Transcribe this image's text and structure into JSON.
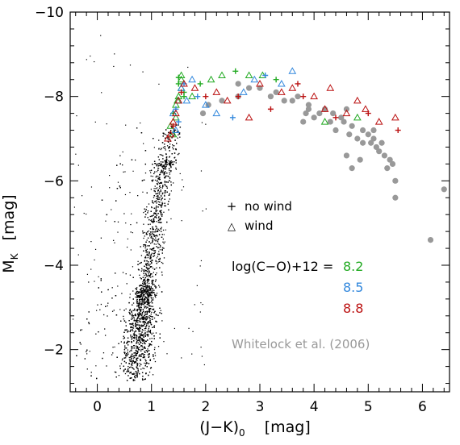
{
  "chart_data": {
    "type": "scatter",
    "xlabel_main": "(J−K)",
    "xlabel_sub": "0",
    "xlabel_unit": "[mag]",
    "ylabel_main": "M",
    "ylabel_sub": "K",
    "ylabel_unit": "[mag]",
    "xlim": [
      -0.5,
      6.5
    ],
    "ylim": [
      -1.0,
      -10.0
    ],
    "x_ticks": [
      0,
      1,
      2,
      3,
      4,
      5,
      6
    ],
    "y_ticks": [
      -2,
      -4,
      -6,
      -8,
      -10
    ],
    "x_tick_labels": [
      "0",
      "1",
      "2",
      "3",
      "4",
      "5",
      "6"
    ],
    "y_tick_labels": [
      "−2",
      "−4",
      "−6",
      "−8",
      "−10"
    ],
    "grid": false,
    "legend": {
      "symbols": [
        {
          "glyph": "+",
          "label": "no wind"
        },
        {
          "glyph": "△",
          "label": "wind"
        }
      ],
      "metallicity_label": "log(C−O)+12 =",
      "metallicity_values": [
        {
          "value": "8.2",
          "color": "#22aa22"
        },
        {
          "value": "8.5",
          "color": "#3388dd"
        },
        {
          "value": "8.8",
          "color": "#bb1111"
        }
      ],
      "reference_label": "Whitelock et al. (2006)",
      "reference_color": "#999999"
    },
    "background_population": {
      "name": "field stars",
      "color": "#000000",
      "approx_count": 3200,
      "ridge": {
        "mk": [
          -1.5,
          -3.0,
          -5.0,
          -6.5,
          -7.2
        ],
        "jk": [
          0.7,
          0.85,
          1.05,
          1.25,
          1.4
        ]
      }
    },
    "series": [
      {
        "name": "Whitelock et al. (2006)",
        "marker": "filled-circle",
        "color": "#999999",
        "x": [
          2.05,
          2.3,
          2.6,
          2.8,
          3.0,
          3.2,
          3.3,
          3.45,
          3.6,
          3.7,
          3.8,
          3.85,
          3.9,
          4.0,
          4.1,
          4.2,
          4.3,
          4.35,
          4.4,
          4.5,
          4.55,
          4.6,
          4.65,
          4.7,
          4.8,
          4.9,
          5.0,
          5.05,
          5.1,
          5.15,
          5.2,
          5.25,
          5.3,
          5.35,
          5.4,
          5.45,
          5.5,
          5.5,
          4.6,
          6.15,
          6.4,
          4.7,
          3.9,
          2.6,
          1.95,
          5.1,
          4.9,
          4.85
        ],
        "y": [
          -7.8,
          -7.9,
          -8.0,
          -8.2,
          -8.2,
          -8.0,
          -8.1,
          -7.9,
          -7.9,
          -8.0,
          -7.4,
          -7.6,
          -7.7,
          -7.5,
          -7.6,
          -7.7,
          -7.4,
          -7.6,
          -7.2,
          -7.5,
          -7.4,
          -7.7,
          -7.1,
          -7.3,
          -7.0,
          -7.2,
          -7.1,
          -6.9,
          -7.0,
          -6.8,
          -6.7,
          -6.9,
          -6.6,
          -6.3,
          -6.5,
          -6.4,
          -6.0,
          -5.6,
          -6.6,
          -4.6,
          -5.8,
          -6.3,
          -7.8,
          -8.3,
          -7.6,
          -7.2,
          -6.9,
          -6.5
        ]
      },
      {
        "name": "8.2",
        "marker": "plus+triangle",
        "color": "#22aa22",
        "x": [
          1.35,
          1.4,
          1.45,
          1.5,
          1.5,
          1.55,
          1.55,
          1.6,
          1.45,
          1.4,
          1.5,
          1.55,
          1.75,
          1.9,
          2.1,
          2.3,
          2.55,
          2.8,
          3.05,
          3.3,
          4.2,
          4.8,
          1.6,
          1.48
        ],
        "y": [
          -7.3,
          -7.6,
          -7.8,
          -8.0,
          -8.3,
          -8.4,
          -8.2,
          -8.1,
          -7.5,
          -7.1,
          -8.45,
          -8.5,
          -8.0,
          -8.3,
          -8.4,
          -8.5,
          -8.6,
          -8.5,
          -8.5,
          -8.4,
          -7.4,
          -7.5,
          -8.0,
          -7.9
        ]
      },
      {
        "name": "8.5",
        "marker": "plus+triangle",
        "color": "#3388dd",
        "x": [
          1.4,
          1.45,
          1.5,
          1.55,
          1.6,
          1.65,
          1.75,
          1.85,
          2.0,
          2.2,
          2.5,
          2.7,
          2.9,
          3.1,
          3.4,
          3.6,
          1.5,
          1.45
        ],
        "y": [
          -7.6,
          -7.7,
          -7.9,
          -8.2,
          -8.3,
          -7.9,
          -8.4,
          -8.0,
          -7.8,
          -7.6,
          -7.5,
          -8.1,
          -8.4,
          -8.5,
          -8.3,
          -8.6,
          -7.4,
          -7.2
        ]
      },
      {
        "name": "8.8",
        "marker": "plus+triangle",
        "color": "#bb1111",
        "x": [
          1.35,
          1.4,
          1.45,
          1.5,
          1.55,
          1.6,
          1.8,
          2.0,
          2.2,
          2.4,
          2.6,
          2.8,
          3.0,
          3.2,
          3.4,
          3.6,
          3.8,
          4.0,
          4.2,
          4.4,
          4.6,
          4.8,
          5.0,
          5.2,
          5.5,
          5.55,
          4.95,
          4.3,
          3.7,
          1.3,
          1.4
        ],
        "y": [
          -7.1,
          -7.3,
          -7.6,
          -7.9,
          -8.1,
          -8.3,
          -8.2,
          -8.0,
          -8.1,
          -7.9,
          -8.0,
          -7.5,
          -8.3,
          -7.7,
          -8.1,
          -8.2,
          -8.0,
          -8.0,
          -7.7,
          -7.5,
          -7.6,
          -7.9,
          -7.6,
          -7.4,
          -7.5,
          -7.2,
          -7.7,
          -8.2,
          -8.3,
          -7.0,
          -7.4
        ]
      }
    ]
  }
}
